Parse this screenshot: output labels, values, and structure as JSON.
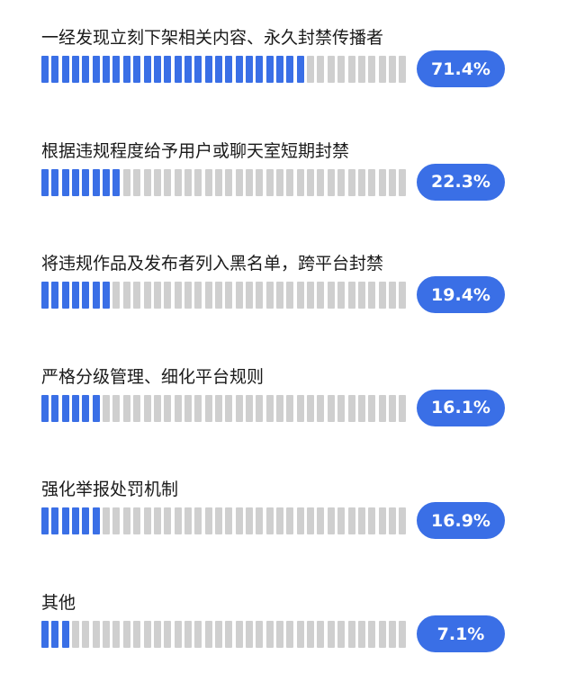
{
  "colors": {
    "filled": "#3a6fe6",
    "empty": "#cfcfcf",
    "pill": "#3a6fe6",
    "text": "#1a1a1a"
  },
  "chart_data": {
    "type": "bar",
    "title": "",
    "categories": [
      "一经发现立刻下架相关内容、永久封禁传播者",
      "根据违规程度给予用户或聊天室短期封禁",
      "将违规作品及发布者列入黑名单，跨平台封禁",
      "严格分级管理、细化平台规则",
      "强化举报处罚机制",
      "其他"
    ],
    "values": [
      71.4,
      22.3,
      19.4,
      16.1,
      16.9,
      7.1
    ],
    "value_labels": [
      "71.4%",
      "22.3%",
      "19.4%",
      "16.1%",
      "16.9%",
      "7.1%"
    ],
    "unit": "%",
    "ylim": [
      0,
      100
    ]
  }
}
